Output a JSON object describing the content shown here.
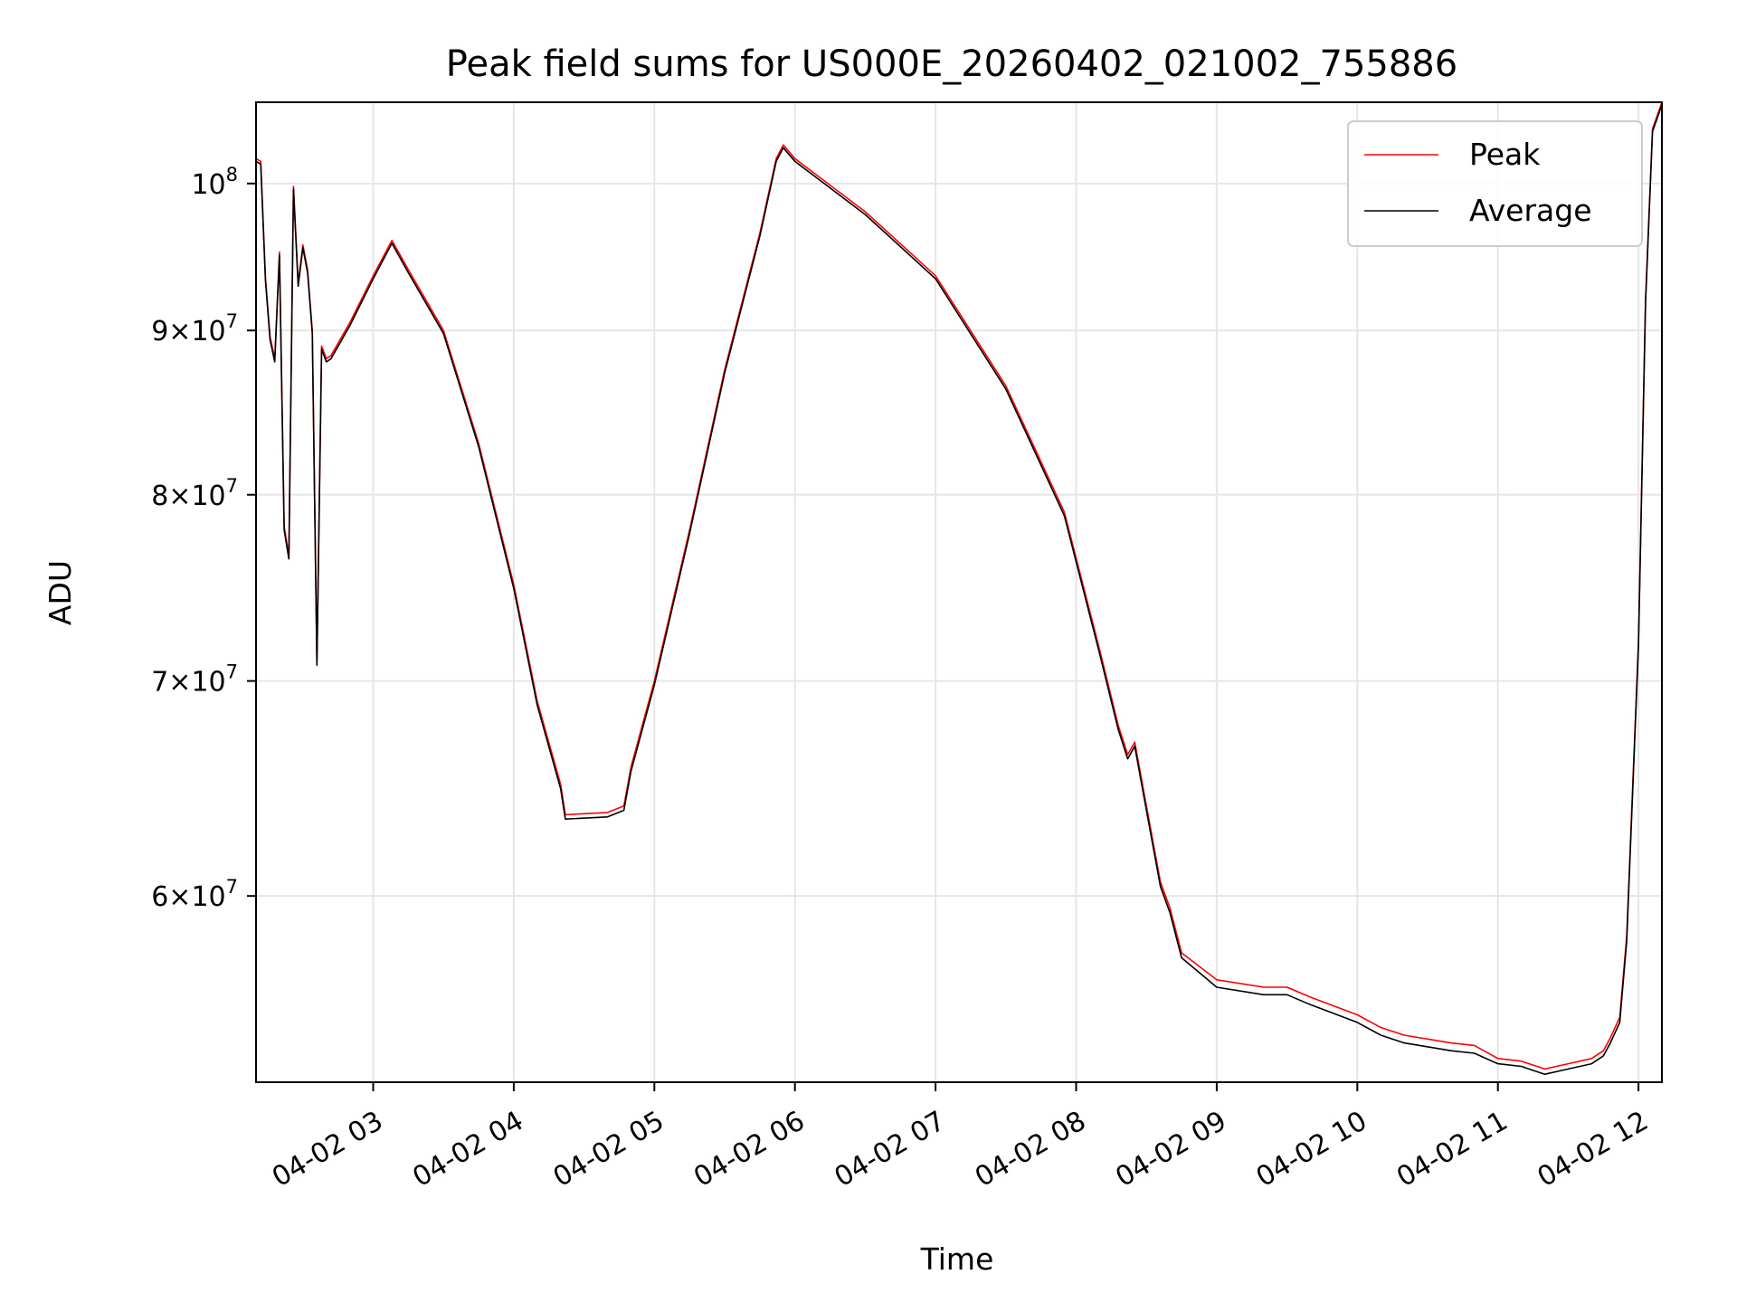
{
  "chart_data": {
    "type": "line",
    "title": "Peak field sums for US000E_20260402_021002_755886",
    "xlabel": "Time",
    "ylabel": "ADU",
    "y_scale": "log",
    "xlim": [
      "2026-04-02 02:10",
      "2026-04-02 12:10"
    ],
    "ylim": [
      52500000,
      106000000
    ],
    "grid": true,
    "legend_position": "top-right",
    "x_ticks": [
      "04-02 03",
      "04-02 04",
      "04-02 05",
      "04-02 06",
      "04-02 07",
      "04-02 08",
      "04-02 09",
      "04-02 10",
      "04-02 11",
      "04-02 12"
    ],
    "x_tick_hours": [
      3,
      4,
      5,
      6,
      7,
      8,
      9,
      10,
      11,
      12
    ],
    "y_ticks": [
      {
        "value": 60000000,
        "mantissa": "6",
        "exponent": "7"
      },
      {
        "value": 70000000,
        "mantissa": "7",
        "exponent": "7"
      },
      {
        "value": 80000000,
        "mantissa": "8",
        "exponent": "7"
      },
      {
        "value": 90000000,
        "mantissa": "9",
        "exponent": "7"
      },
      {
        "value": 100000000,
        "mantissa": "",
        "exponent": "8"
      }
    ],
    "x": [
      "02:10",
      "02:12",
      "02:14",
      "02:16",
      "02:18",
      "02:20",
      "02:22",
      "02:24",
      "02:26",
      "02:28",
      "02:30",
      "02:32",
      "02:34",
      "02:36",
      "02:38",
      "02:40",
      "02:42",
      "02:50",
      "03:00",
      "03:08",
      "03:15",
      "03:30",
      "03:45",
      "04:00",
      "04:10",
      "04:20",
      "04:22",
      "04:40",
      "04:47",
      "04:50",
      "05:00",
      "05:15",
      "05:30",
      "05:45",
      "05:52",
      "05:55",
      "06:00",
      "06:30",
      "07:00",
      "07:30",
      "07:55",
      "08:10",
      "08:18",
      "08:22",
      "08:25",
      "08:30",
      "08:36",
      "08:40",
      "08:45",
      "09:00",
      "09:20",
      "09:30",
      "09:40",
      "10:00",
      "10:10",
      "10:20",
      "10:40",
      "10:50",
      "11:00",
      "11:10",
      "11:20",
      "11:30",
      "11:40",
      "11:45",
      "11:48",
      "11:52",
      "11:55",
      "12:00",
      "12:03",
      "12:06",
      "12:10"
    ],
    "series": [
      {
        "name": "Peak",
        "color": "#ff0000",
        "values": [
          101800000,
          101600000,
          93500000,
          89600000,
          88200000,
          95200000,
          78200000,
          76600000,
          99800000,
          93100000,
          95700000,
          94000000,
          90000000,
          71000000,
          89000000,
          88200000,
          88400000,
          90500000,
          93600000,
          96000000,
          94000000,
          90000000,
          83000000,
          75000000,
          69000000,
          65000000,
          63600000,
          63700000,
          64000000,
          65800000,
          70000000,
          78000000,
          87500000,
          96500000,
          101800000,
          102800000,
          101800000,
          98000000,
          93600000,
          86500000,
          79000000,
          71600000,
          67800000,
          66400000,
          67000000,
          64000000,
          60600000,
          59500000,
          57600000,
          56500000,
          56200000,
          56200000,
          55800000,
          55100000,
          54600000,
          54300000,
          54000000,
          53900000,
          53400000,
          53300000,
          53000000,
          53200000,
          53400000,
          53700000,
          54200000,
          55000000,
          58300000,
          72000000,
          92000000,
          104000000,
          106000000
        ]
      },
      {
        "name": "Average",
        "color": "#000000",
        "values": [
          101600000,
          101400000,
          93300000,
          89400000,
          88000000,
          95000000,
          78000000,
          76400000,
          99600000,
          92900000,
          95500000,
          93800000,
          89800000,
          70800000,
          88800000,
          88000000,
          88200000,
          90300000,
          93400000,
          95800000,
          93800000,
          89800000,
          82800000,
          74800000,
          68800000,
          64800000,
          63400000,
          63500000,
          63800000,
          65600000,
          69800000,
          77800000,
          87300000,
          96300000,
          101600000,
          102600000,
          101600000,
          97800000,
          93400000,
          86300000,
          78800000,
          71400000,
          67600000,
          66200000,
          66800000,
          63800000,
          60400000,
          59300000,
          57400000,
          56200000,
          55900000,
          55900000,
          55500000,
          54800000,
          54300000,
          54000000,
          53700000,
          53600000,
          53200000,
          53100000,
          52800000,
          53000000,
          53200000,
          53500000,
          54000000,
          54800000,
          58100000,
          71800000,
          91800000,
          103800000,
          105800000
        ]
      }
    ]
  }
}
